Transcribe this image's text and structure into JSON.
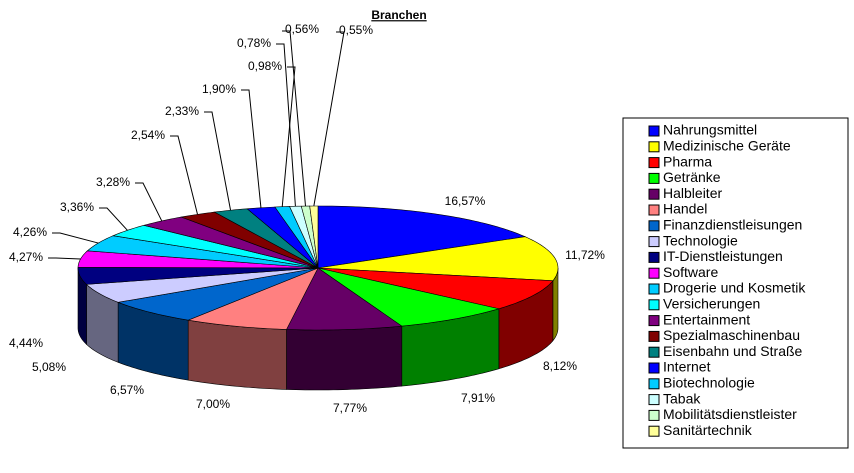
{
  "chart_data": {
    "type": "pie",
    "title": "Branchen",
    "categories": [
      "Nahrungsmittel",
      "Medizinische Geräte",
      "Pharma",
      "Getränke",
      "Halbleiter",
      "Handel",
      "Finanzdienstleisungen",
      "Technologie",
      "IT-Dienstleistungen",
      "Software",
      "Drogerie und Kosmetik",
      "Versicherungen",
      "Entertainment",
      "Spezialmaschinenbau",
      "Eisenbahn und Straße",
      "Internet",
      "Biotechnologie",
      "Tabak",
      "Mobilitätsdienstleister",
      "Sanitärtechnik"
    ],
    "values": [
      16.57,
      11.72,
      8.12,
      7.91,
      7.77,
      7.0,
      6.57,
      5.08,
      4.44,
      4.27,
      4.26,
      3.36,
      3.28,
      2.54,
      2.33,
      1.9,
      0.98,
      0.78,
      0.56,
      0.55
    ],
    "value_labels": [
      "16,57%",
      "11,72%",
      "8,12%",
      "7,91%",
      "7,77%",
      "7,00%",
      "6,57%",
      "5,08%",
      "4,44%",
      "4,27%",
      "4,26%",
      "3,36%",
      "3,28%",
      "2,54%",
      "2,33%",
      "1,90%",
      "0,98%",
      "0,78%",
      "0,56%",
      "0,55%"
    ],
    "colors": [
      "#0000ff",
      "#ffff00",
      "#ff0000",
      "#00ff00",
      "#660066",
      "#ff8080",
      "#0066cc",
      "#ccccff",
      "#000080",
      "#ff00ff",
      "#00ccff",
      "#00ffff",
      "#800080",
      "#800000",
      "#008080",
      "#0000ff",
      "#00ccff",
      "#ccffff",
      "#ccffcc",
      "#ffff99"
    ],
    "legend": "right"
  }
}
